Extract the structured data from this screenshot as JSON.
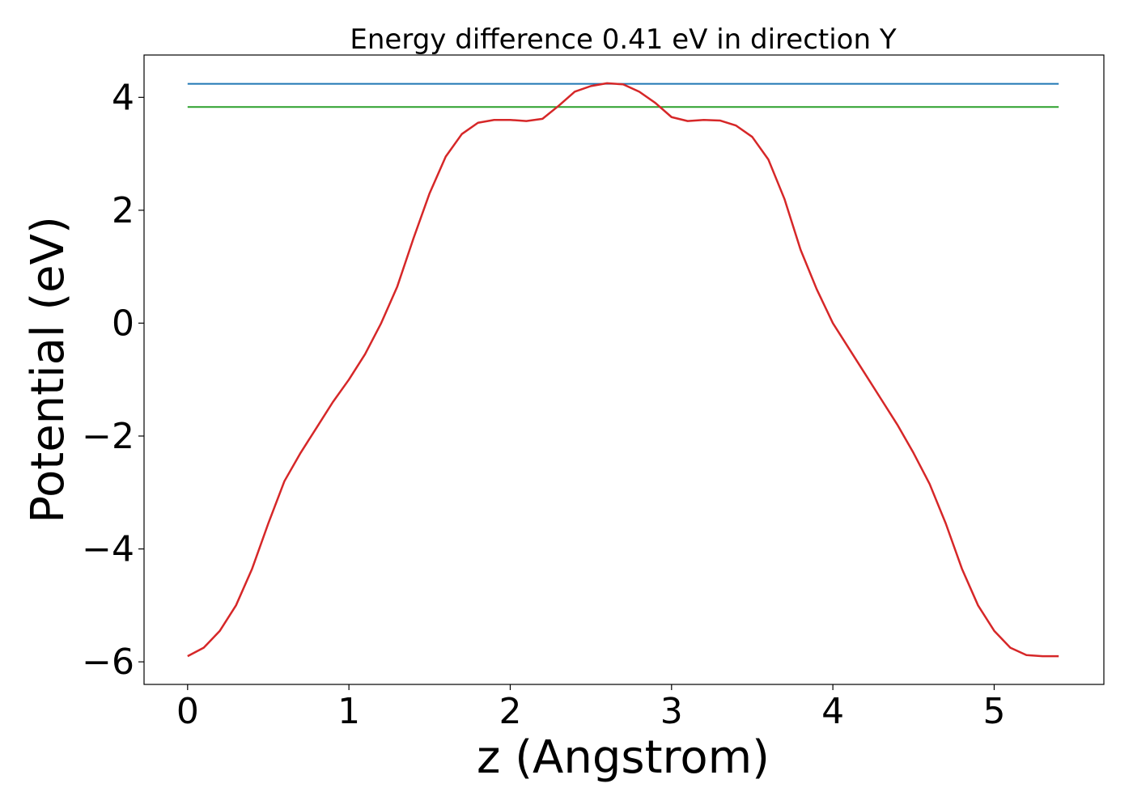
{
  "chart_data": {
    "type": "line",
    "title": "Energy difference 0.41 eV in direction Y",
    "xlabel": "z (Angstrom)",
    "ylabel": "Potential (eV)",
    "xlim": [
      -0.27,
      5.68
    ],
    "ylim": [
      -6.4,
      4.75
    ],
    "xticks": [
      0,
      1,
      2,
      3,
      4,
      5
    ],
    "xtick_labels": [
      "0",
      "1",
      "2",
      "3",
      "4",
      "5"
    ],
    "yticks": [
      -6,
      -4,
      -2,
      0,
      2,
      4
    ],
    "ytick_labels": [
      "−6",
      "−4",
      "−2",
      "0",
      "2",
      "4"
    ],
    "grid": false,
    "legend": "none",
    "series": [
      {
        "color": "#1f77b4",
        "x": [
          0,
          5.4
        ],
        "y": [
          4.24,
          4.24
        ]
      },
      {
        "color": "#2ca02c",
        "x": [
          0,
          5.4
        ],
        "y": [
          3.83,
          3.83
        ]
      },
      {
        "color": "#d62728",
        "x": [
          0,
          0.1,
          0.2,
          0.3,
          0.4,
          0.5,
          0.6,
          0.7,
          0.8,
          0.9,
          1.0,
          1.1,
          1.2,
          1.3,
          1.4,
          1.5,
          1.6,
          1.7,
          1.8,
          1.9,
          2.0,
          2.1,
          2.2,
          2.3,
          2.4,
          2.5,
          2.6,
          2.7,
          2.8,
          2.9,
          3.0,
          3.1,
          3.2,
          3.3,
          3.4,
          3.5,
          3.6,
          3.7,
          3.8,
          3.9,
          4.0,
          4.1,
          4.2,
          4.3,
          4.4,
          4.5,
          4.6,
          4.7,
          4.8,
          4.9,
          5.0,
          5.1,
          5.2,
          5.3,
          5.4
        ],
        "y": [
          -5.9,
          -5.75,
          -5.45,
          -5.0,
          -4.35,
          -3.55,
          -2.8,
          -2.3,
          -1.85,
          -1.4,
          -1.0,
          -0.55,
          0.0,
          0.65,
          1.5,
          2.3,
          2.95,
          3.35,
          3.55,
          3.6,
          3.6,
          3.58,
          3.62,
          3.85,
          4.1,
          4.2,
          4.25,
          4.23,
          4.1,
          3.9,
          3.65,
          3.58,
          3.6,
          3.59,
          3.5,
          3.3,
          2.9,
          2.2,
          1.3,
          0.6,
          0.0,
          -0.45,
          -0.9,
          -1.35,
          -1.8,
          -2.3,
          -2.85,
          -3.55,
          -4.35,
          -5.0,
          -5.45,
          -5.75,
          -5.88,
          -5.9,
          -5.9
        ]
      }
    ]
  }
}
